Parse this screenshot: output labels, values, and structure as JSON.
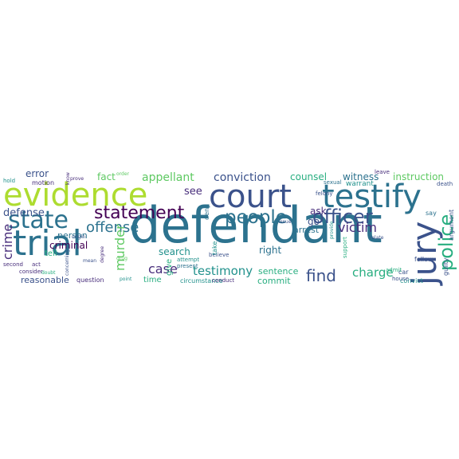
{
  "words": [
    "defendant",
    "court",
    "evidence",
    "testify",
    "trial",
    "state",
    "jury",
    "people",
    "officer",
    "statement",
    "police",
    "offense",
    "find",
    "testimony",
    "charge",
    "victim",
    "crime",
    "case",
    "murder",
    "conviction",
    "appellant",
    "defense",
    "see",
    "search",
    "right",
    "instruction",
    "witness",
    "counsel",
    "error",
    "criminal",
    "reasonable",
    "person",
    "fact",
    "ask",
    "go",
    "arrest",
    "sentence",
    "commit",
    "time",
    "give",
    "circumstance",
    "question",
    "tell",
    "guilty",
    "argument",
    "convict",
    "follow",
    "say",
    "house",
    "car",
    "support",
    "admit",
    "death",
    "leave",
    "warrant",
    "felony",
    "sexual",
    "conduct",
    "believe",
    "deny",
    "take",
    "present",
    "attempt",
    "motion",
    "hold",
    "second",
    "act",
    "consider",
    "doubt",
    "mean",
    "point",
    "drug",
    "degree",
    "know",
    "prove",
    "order",
    "origin",
    "concerning",
    "issue",
    "relate",
    "provide"
  ]
}
